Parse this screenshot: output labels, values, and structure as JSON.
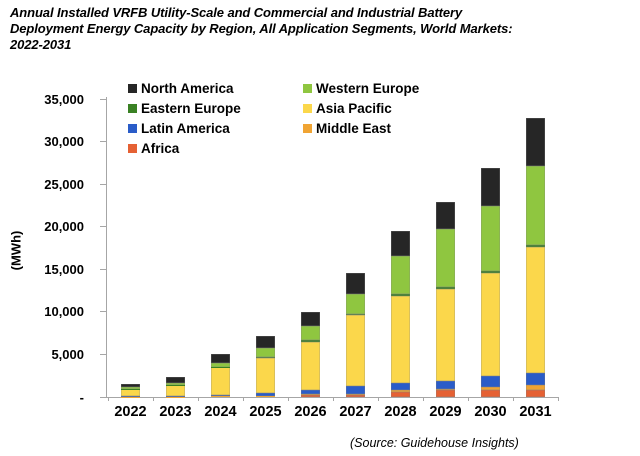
{
  "header": {
    "title_lines": [
      "Annual Installed VRFB Utility-Scale and Commercial and Industrial Battery",
      "Deployment Energy Capacity by Region, All Application Segments, World Markets:",
      "2022-2031"
    ]
  },
  "source_note": "(Source: Guidehouse Insights)",
  "chart_data": {
    "type": "bar",
    "stacked": true,
    "title": "Annual Installed VRFB Utility-Scale and Commercial and Industrial Battery Deployment Energy Capacity by Region, All Application Segments, World Markets: 2022-2031",
    "xlabel": "",
    "ylabel": "(MWh)",
    "ylim": [
      0,
      35000
    ],
    "grid": false,
    "y_tick_labels": [
      "35,000",
      "30,000",
      "25,000",
      "20,000",
      "15,000",
      "10,000",
      "5,000",
      "-"
    ],
    "y_tick_values": [
      35000,
      30000,
      25000,
      20000,
      15000,
      10000,
      5000,
      0
    ],
    "categories": [
      "2022",
      "2023",
      "2024",
      "2025",
      "2026",
      "2027",
      "2028",
      "2029",
      "2030",
      "2031"
    ],
    "series": [
      {
        "name": "North America",
        "color": "#262626",
        "values": [
          430,
          650,
          1100,
          1400,
          1560,
          2550,
          2940,
          3200,
          4380,
          5680
        ]
      },
      {
        "name": "Western Europe",
        "color": "#8fc640",
        "values": [
          180,
          250,
          450,
          1030,
          1680,
          2270,
          4520,
          6800,
          7630,
          9280
        ]
      },
      {
        "name": "Eastern Europe",
        "color": "#3a8124",
        "values": [
          20,
          30,
          40,
          170,
          250,
          200,
          230,
          230,
          230,
          290
        ]
      },
      {
        "name": "Asia Pacific",
        "color": "#fbd74b",
        "values": [
          870,
          1250,
          3250,
          4070,
          5670,
          8300,
          10180,
          10800,
          12200,
          14800
        ]
      },
      {
        "name": "Latin America",
        "color": "#2a5cc8",
        "values": [
          30,
          100,
          180,
          350,
          450,
          890,
          860,
          940,
          1220,
          1370
        ]
      },
      {
        "name": "Middle East",
        "color": "#f0a433",
        "values": [
          10,
          10,
          20,
          30,
          100,
          120,
          180,
          200,
          400,
          600
        ]
      },
      {
        "name": "Africa",
        "color": "#e56134",
        "values": [
          20,
          40,
          60,
          120,
          230,
          280,
          610,
          780,
          800,
          800
        ]
      }
    ],
    "stack_order_bottom_to_top": [
      "Africa",
      "Middle East",
      "Latin America",
      "Asia Pacific",
      "Eastern Europe",
      "Western Europe",
      "North America"
    ],
    "legend": {
      "position": "top-inside",
      "columns": [
        [
          "North America",
          "Eastern Europe",
          "Latin America",
          "Africa"
        ],
        [
          "Western Europe",
          "Asia Pacific",
          "Middle East"
        ]
      ]
    }
  }
}
